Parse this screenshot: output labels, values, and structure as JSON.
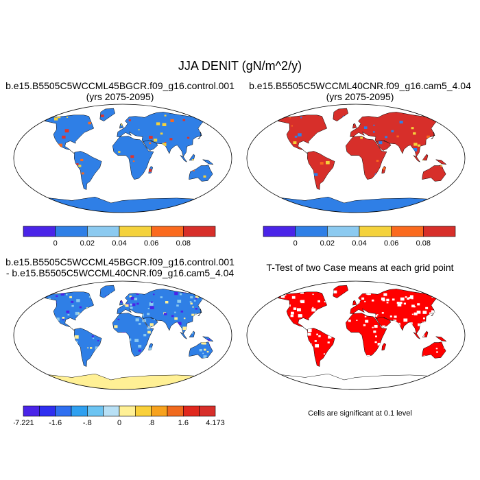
{
  "figure": {
    "title": "JJA DENIT (gN/m^2/y)",
    "panels": [
      {
        "id": "p1",
        "title_lines": [
          "b.e15.B5505C5WCCML45BGCR.f09_g16.control.001",
          "(yrs 2075-2095)"
        ],
        "base_color": "#2f7fe6",
        "antarctica_color": "#2f7fe6",
        "speckle_colors": [
          "#e0322a",
          "#f4d23c",
          "#fa6a1e"
        ]
      },
      {
        "id": "p2",
        "title_lines": [
          "b.e15.B5505C5WCCML40CNR.f09_g16.cam5_4.04",
          "(yrs 2075-2095)"
        ],
        "base_color": "#d72f2a",
        "antarctica_color": "#2f7fe6",
        "speckle_colors": [
          "#f4d23c",
          "#2f7fe6",
          "#fa6a1e"
        ]
      },
      {
        "id": "p3",
        "title_lines": [
          "b.e15.B5505C5WCCML45BGCR.f09_g16.control.001",
          "- b.e15.B5505C5WCCML40CNR.f09_g16.cam5_4.04"
        ],
        "base_color": "#2f7fe6",
        "antarctica_color": "#fff095",
        "speckle_colors": [
          "#4a24e8",
          "#8ccaf0",
          "#fff095"
        ]
      },
      {
        "id": "p4",
        "title_lines": [
          "T-Test of two Case means at each grid point"
        ],
        "base_color": "#ff0000",
        "antarctica_color": "#ffffff",
        "speckle_colors": [
          "#ffffff"
        ]
      }
    ],
    "colorbar_top": {
      "colors": [
        "#4a24e8",
        "#2f7fe6",
        "#8ccaf0",
        "#f4d23c",
        "#fa6a1e",
        "#d72f2a"
      ],
      "labels": [
        "0",
        "0.02",
        "0.04",
        "0.06",
        "0.08"
      ]
    },
    "colorbar_diff": {
      "colors": [
        "#4a24e8",
        "#2f2ff0",
        "#2f6ff0",
        "#2fa0f0",
        "#6cc4f2",
        "#b8e0f5",
        "#fff095",
        "#f9d03a",
        "#f7a21e",
        "#f06a1e",
        "#e0281e",
        "#d72f2a"
      ],
      "labels": [
        "-7.221",
        "-1.6",
        "-.8",
        "0",
        ".8",
        "1.6",
        "4.173"
      ]
    },
    "significance_note": "Cells are significant at 0.1 level"
  }
}
